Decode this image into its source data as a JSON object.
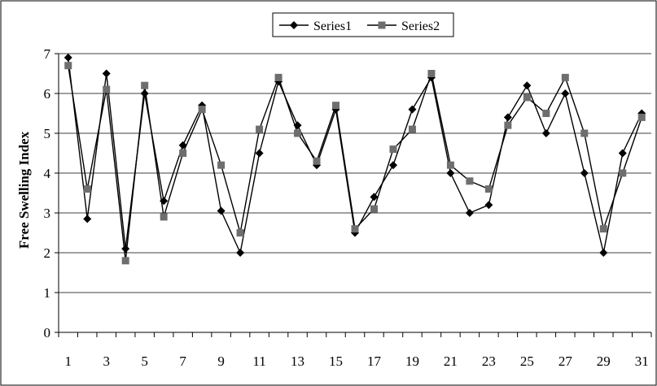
{
  "chart_data": {
    "type": "line",
    "title": "",
    "xlabel": "",
    "ylabel": "Free Swelling Index",
    "x": [
      1,
      2,
      3,
      4,
      5,
      6,
      7,
      8,
      9,
      10,
      11,
      12,
      13,
      14,
      15,
      16,
      17,
      18,
      19,
      20,
      21,
      22,
      23,
      24,
      25,
      26,
      27,
      28,
      29,
      30,
      31
    ],
    "x_tick_labels": [
      "1",
      "3",
      "5",
      "7",
      "9",
      "11",
      "13",
      "15",
      "17",
      "19",
      "21",
      "23",
      "25",
      "27",
      "29",
      "31"
    ],
    "y_tick_labels": [
      "0",
      "1",
      "2",
      "3",
      "4",
      "5",
      "6",
      "7"
    ],
    "ylim": [
      0,
      7
    ],
    "grid": "horizontal",
    "legend_position": "top-center",
    "series": [
      {
        "name": "Series1",
        "marker": "diamond",
        "color": "#000000",
        "values": [
          6.9,
          2.85,
          6.5,
          2.1,
          6.0,
          3.3,
          4.7,
          5.7,
          3.05,
          2.0,
          4.5,
          6.3,
          5.2,
          4.2,
          5.6,
          2.5,
          3.4,
          4.2,
          5.6,
          6.4,
          4.0,
          3.0,
          3.2,
          5.4,
          6.2,
          5.0,
          6.0,
          4.0,
          2.0,
          4.5,
          5.5
        ]
      },
      {
        "name": "Series2",
        "marker": "square",
        "color": "#6e6e6e",
        "values": [
          6.7,
          3.6,
          6.1,
          1.8,
          6.2,
          2.9,
          4.5,
          5.6,
          4.2,
          2.5,
          5.1,
          6.4,
          5.0,
          4.3,
          5.7,
          2.6,
          3.1,
          4.6,
          5.1,
          6.5,
          4.2,
          3.8,
          3.6,
          5.2,
          5.9,
          5.5,
          6.4,
          5.0,
          2.6,
          4.0,
          5.4
        ]
      }
    ]
  }
}
